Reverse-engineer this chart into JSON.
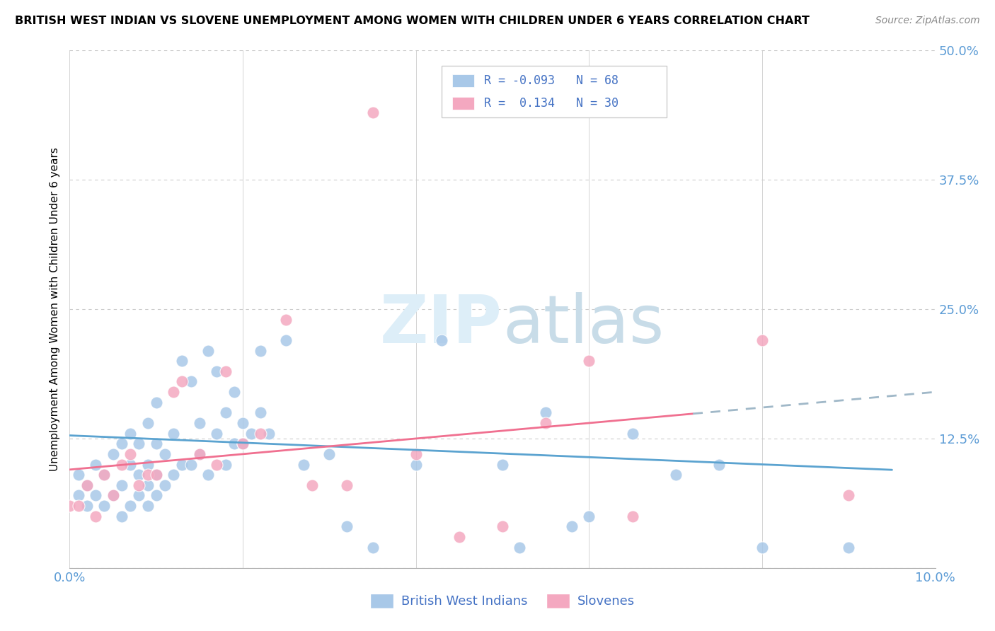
{
  "title": "BRITISH WEST INDIAN VS SLOVENE UNEMPLOYMENT AMONG WOMEN WITH CHILDREN UNDER 6 YEARS CORRELATION CHART",
  "source": "Source: ZipAtlas.com",
  "ylabel": "Unemployment Among Women with Children Under 6 years",
  "xlim": [
    0.0,
    0.1
  ],
  "ylim": [
    0.0,
    0.5
  ],
  "xticks": [
    0.0,
    0.02,
    0.04,
    0.06,
    0.08,
    0.1
  ],
  "xticklabels": [
    "0.0%",
    "",
    "",
    "",
    "",
    "10.0%"
  ],
  "yticks": [
    0.0,
    0.125,
    0.25,
    0.375,
    0.5
  ],
  "yticklabels": [
    "",
    "12.5%",
    "25.0%",
    "37.5%",
    "50.0%"
  ],
  "color_bwi": "#a8c8e8",
  "color_slo": "#f4a8c0",
  "color_bwi_line": "#5ba3d0",
  "color_slo_line": "#f07090",
  "color_dash": "#a0b8c8",
  "color_axis_labels": "#5b9bd5",
  "color_legend_text": "#4472c4",
  "watermark_color": "#ddeef8",
  "background_color": "#ffffff",
  "grid_color": "#cccccc",
  "bwi_intercept": 0.128,
  "bwi_slope": -0.35,
  "slo_intercept": 0.095,
  "slo_slope": 0.75,
  "bwi_x": [
    0.001,
    0.001,
    0.002,
    0.002,
    0.003,
    0.003,
    0.004,
    0.004,
    0.005,
    0.005,
    0.006,
    0.006,
    0.006,
    0.007,
    0.007,
    0.007,
    0.008,
    0.008,
    0.008,
    0.009,
    0.009,
    0.009,
    0.009,
    0.01,
    0.01,
    0.01,
    0.01,
    0.011,
    0.011,
    0.012,
    0.012,
    0.013,
    0.013,
    0.014,
    0.014,
    0.015,
    0.015,
    0.016,
    0.016,
    0.017,
    0.017,
    0.018,
    0.018,
    0.019,
    0.019,
    0.02,
    0.02,
    0.021,
    0.022,
    0.022,
    0.023,
    0.025,
    0.027,
    0.03,
    0.032,
    0.035,
    0.04,
    0.043,
    0.05,
    0.052,
    0.055,
    0.058,
    0.06,
    0.065,
    0.07,
    0.075,
    0.08,
    0.09
  ],
  "bwi_y": [
    0.07,
    0.09,
    0.06,
    0.08,
    0.07,
    0.1,
    0.06,
    0.09,
    0.07,
    0.11,
    0.05,
    0.08,
    0.12,
    0.06,
    0.1,
    0.13,
    0.07,
    0.09,
    0.12,
    0.06,
    0.08,
    0.1,
    0.14,
    0.07,
    0.09,
    0.12,
    0.16,
    0.08,
    0.11,
    0.09,
    0.13,
    0.1,
    0.2,
    0.1,
    0.18,
    0.11,
    0.14,
    0.09,
    0.21,
    0.13,
    0.19,
    0.1,
    0.15,
    0.12,
    0.17,
    0.12,
    0.14,
    0.13,
    0.21,
    0.15,
    0.13,
    0.22,
    0.1,
    0.11,
    0.04,
    0.02,
    0.1,
    0.22,
    0.1,
    0.02,
    0.15,
    0.04,
    0.05,
    0.13,
    0.09,
    0.1,
    0.02,
    0.02
  ],
  "slo_x": [
    0.0,
    0.001,
    0.002,
    0.003,
    0.004,
    0.005,
    0.006,
    0.007,
    0.008,
    0.009,
    0.01,
    0.012,
    0.013,
    0.015,
    0.017,
    0.018,
    0.02,
    0.022,
    0.025,
    0.028,
    0.032,
    0.035,
    0.04,
    0.045,
    0.05,
    0.055,
    0.06,
    0.065,
    0.08,
    0.09
  ],
  "slo_y": [
    0.06,
    0.06,
    0.08,
    0.05,
    0.09,
    0.07,
    0.1,
    0.11,
    0.08,
    0.09,
    0.09,
    0.17,
    0.18,
    0.11,
    0.1,
    0.19,
    0.12,
    0.13,
    0.24,
    0.08,
    0.08,
    0.44,
    0.11,
    0.03,
    0.04,
    0.14,
    0.2,
    0.05,
    0.22,
    0.07
  ]
}
